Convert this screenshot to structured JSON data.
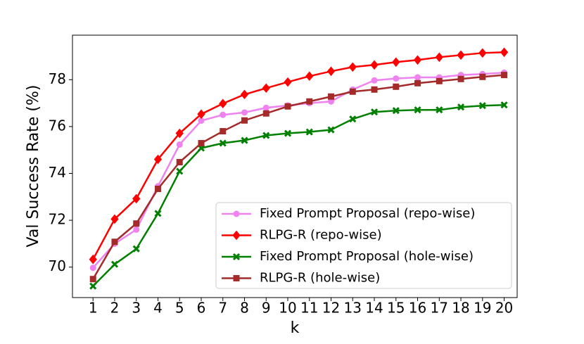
{
  "chart_data": {
    "type": "line",
    "xlabel": "k",
    "ylabel": "Val Success Rate (%)",
    "x": [
      1,
      2,
      3,
      4,
      5,
      6,
      7,
      8,
      9,
      10,
      11,
      12,
      13,
      14,
      15,
      16,
      17,
      18,
      19,
      20
    ],
    "xlim": [
      0.05,
      20.6
    ],
    "xticks": [
      1,
      2,
      3,
      4,
      5,
      6,
      7,
      8,
      9,
      10,
      11,
      12,
      13,
      14,
      15,
      16,
      17,
      18,
      19,
      20
    ],
    "ylim": [
      68.7,
      79.9
    ],
    "yticks": [
      70,
      72,
      74,
      76,
      78
    ],
    "legend": "lower right",
    "series": [
      {
        "name": "Fixed Prompt Proposal (repo-wise)",
        "color": "#ee82ee",
        "marker": "circle",
        "values": [
          69.97,
          71.0,
          71.6,
          73.45,
          75.23,
          76.25,
          76.5,
          76.6,
          76.8,
          76.9,
          77.0,
          77.07,
          77.58,
          77.97,
          78.05,
          78.1,
          78.1,
          78.2,
          78.24,
          78.3
        ]
      },
      {
        "name": "RLPG-R (repo-wise)",
        "color": "#ff0000",
        "marker": "diamond",
        "values": [
          70.33,
          72.05,
          72.92,
          74.6,
          75.71,
          76.53,
          76.98,
          77.37,
          77.64,
          77.9,
          78.15,
          78.36,
          78.54,
          78.63,
          78.75,
          78.84,
          78.96,
          79.05,
          79.14,
          79.17
        ]
      },
      {
        "name": "Fixed Prompt Proposal (hole-wise)",
        "color": "#008000",
        "marker": "x",
        "values": [
          69.19,
          70.12,
          70.78,
          72.29,
          74.09,
          75.08,
          75.29,
          75.41,
          75.62,
          75.71,
          75.77,
          75.86,
          76.32,
          76.62,
          76.68,
          76.71,
          76.71,
          76.83,
          76.89,
          76.92
        ]
      },
      {
        "name": "RLPG-R (hole-wise)",
        "color": "#a52a2a",
        "marker": "square",
        "values": [
          69.49,
          71.08,
          71.86,
          73.34,
          74.48,
          75.29,
          75.8,
          76.26,
          76.56,
          76.86,
          77.07,
          77.28,
          77.49,
          77.58,
          77.7,
          77.85,
          77.94,
          78.03,
          78.12,
          78.2
        ]
      }
    ]
  }
}
